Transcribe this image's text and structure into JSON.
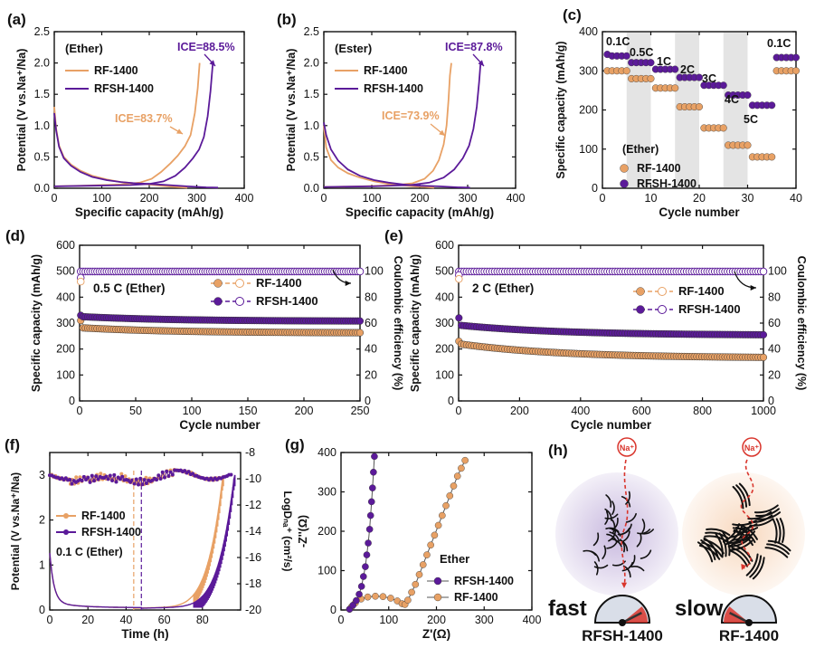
{
  "colors": {
    "rf": "#E8A165",
    "rfsh": "#5B1A99",
    "red": "#D9352C",
    "axis": "#111111",
    "band": "#E4E4E4"
  },
  "chart_data": [
    {
      "id": "a",
      "type": "line",
      "panel_label": "(a)",
      "xlabel": "Specific capacity (mAh/g)",
      "ylabel": "Potential (V vs.Na⁺/Na)",
      "xlim": [
        0,
        400
      ],
      "ylim": [
        0,
        2.5
      ],
      "xticks": [
        "0",
        "100",
        "200",
        "300",
        "400"
      ],
      "yticks": [
        "0.0",
        "0.5",
        "1.0",
        "1.5",
        "2.0",
        "2.5"
      ],
      "legend_title": "(Ether)",
      "annotations": [
        "ICE=83.7%",
        "ICE=88.5%"
      ],
      "series": [
        {
          "name": "RF-1400",
          "color": "rf",
          "discharge": [
            [
              0,
              1.3
            ],
            [
              4,
              0.95
            ],
            [
              10,
              0.68
            ],
            [
              20,
              0.5
            ],
            [
              35,
              0.38
            ],
            [
              55,
              0.28
            ],
            [
              80,
              0.2
            ],
            [
              110,
              0.14
            ],
            [
              140,
              0.1
            ],
            [
              170,
              0.08
            ],
            [
              200,
              0.06
            ],
            [
              225,
              0.04
            ],
            [
              255,
              0.02
            ],
            [
              280,
              0.01
            ]
          ],
          "charge": [
            [
              0,
              0.03
            ],
            [
              60,
              0.04
            ],
            [
              140,
              0.06
            ],
            [
              180,
              0.09
            ],
            [
              205,
              0.15
            ],
            [
              225,
              0.26
            ],
            [
              245,
              0.4
            ],
            [
              260,
              0.52
            ],
            [
              275,
              0.67
            ],
            [
              287,
              0.85
            ],
            [
              296,
              1.2
            ],
            [
              302,
              1.6
            ],
            [
              306,
              2.0
            ]
          ]
        },
        {
          "name": "RFSH-1400",
          "color": "rfsh",
          "discharge": [
            [
              0,
              1.2
            ],
            [
              4,
              0.92
            ],
            [
              10,
              0.66
            ],
            [
              20,
              0.48
            ],
            [
              35,
              0.36
            ],
            [
              55,
              0.26
            ],
            [
              80,
              0.18
            ],
            [
              110,
              0.13
            ],
            [
              140,
              0.1
            ],
            [
              170,
              0.08
            ],
            [
              200,
              0.07
            ],
            [
              240,
              0.05
            ],
            [
              280,
              0.03
            ],
            [
              320,
              0.015
            ],
            [
              345,
              0.01
            ]
          ],
          "charge": [
            [
              0,
              0.03
            ],
            [
              80,
              0.04
            ],
            [
              160,
              0.05
            ],
            [
              200,
              0.07
            ],
            [
              230,
              0.11
            ],
            [
              255,
              0.2
            ],
            [
              275,
              0.33
            ],
            [
              292,
              0.48
            ],
            [
              305,
              0.62
            ],
            [
              315,
              0.82
            ],
            [
              323,
              1.15
            ],
            [
              329,
              1.55
            ],
            [
              334,
              2.0
            ]
          ]
        }
      ]
    },
    {
      "id": "b",
      "type": "line",
      "panel_label": "(b)",
      "xlabel": "Specific capacity (mAh/g)",
      "ylabel": "Potential (V vs.Na⁺/Na)",
      "xlim": [
        0,
        400
      ],
      "ylim": [
        0,
        2.5
      ],
      "xticks": [
        "0",
        "100",
        "200",
        "300",
        "400"
      ],
      "yticks": [
        "0.0",
        "0.5",
        "1.0",
        "1.5",
        "2.0",
        "2.5"
      ],
      "legend_title": "(Ester)",
      "annotations": [
        "ICE=73.9%",
        "ICE=87.8%"
      ],
      "series": [
        {
          "name": "RF-1400",
          "color": "rf",
          "discharge": [
            [
              0,
              1.0
            ],
            [
              5,
              0.65
            ],
            [
              15,
              0.45
            ],
            [
              30,
              0.33
            ],
            [
              50,
              0.24
            ],
            [
              75,
              0.17
            ],
            [
              105,
              0.11
            ],
            [
              135,
              0.07
            ],
            [
              160,
              0.05
            ],
            [
              185,
              0.03
            ],
            [
              210,
              0.02
            ],
            [
              230,
              0.01
            ]
          ],
          "charge": [
            [
              0,
              0.02
            ],
            [
              80,
              0.03
            ],
            [
              150,
              0.05
            ],
            [
              185,
              0.08
            ],
            [
              210,
              0.15
            ],
            [
              228,
              0.28
            ],
            [
              240,
              0.45
            ],
            [
              250,
              0.7
            ],
            [
              256,
              1.0
            ],
            [
              260,
              1.4
            ],
            [
              263,
              1.8
            ],
            [
              266,
              2.0
            ]
          ]
        },
        {
          "name": "RFSH-1400",
          "color": "rfsh",
          "discharge": [
            [
              0,
              1.05
            ],
            [
              5,
              0.85
            ],
            [
              15,
              0.62
            ],
            [
              30,
              0.44
            ],
            [
              50,
              0.3
            ],
            [
              75,
              0.2
            ],
            [
              105,
              0.13
            ],
            [
              135,
              0.09
            ],
            [
              165,
              0.06
            ],
            [
              200,
              0.04
            ],
            [
              240,
              0.03
            ],
            [
              280,
              0.015
            ],
            [
              305,
              0.01
            ]
          ],
          "charge": [
            [
              0,
              0.02
            ],
            [
              100,
              0.03
            ],
            [
              180,
              0.05
            ],
            [
              220,
              0.09
            ],
            [
              250,
              0.17
            ],
            [
              272,
              0.3
            ],
            [
              290,
              0.48
            ],
            [
              303,
              0.68
            ],
            [
              312,
              0.95
            ],
            [
              319,
              1.3
            ],
            [
              324,
              1.7
            ],
            [
              327,
              2.0
            ]
          ]
        }
      ]
    },
    {
      "id": "c",
      "type": "scatter",
      "panel_label": "(c)",
      "xlabel": "Cycle number",
      "ylabel": "Specific capacity (mAh/g)",
      "xlim": [
        0,
        40
      ],
      "ylim": [
        0,
        400
      ],
      "xticks": [
        "0",
        "10",
        "20",
        "30",
        "40"
      ],
      "yticks": [
        "0",
        "100",
        "200",
        "300",
        "400"
      ],
      "legend_title": "(Ether)",
      "rate_labels": [
        "0.1C",
        "0.5C",
        "1C",
        "2C",
        "3C",
        "4C",
        "5C",
        "0.1C"
      ],
      "series": [
        {
          "name": "RF-1400",
          "color": "rf",
          "rate_values": [
            300,
            280,
            256,
            208,
            154,
            110,
            80,
            300
          ]
        },
        {
          "name": "RFSH-1400",
          "color": "rfsh",
          "rate_values": [
            338,
            321,
            304,
            283,
            263,
            238,
            212,
            334
          ]
        }
      ]
    },
    {
      "id": "d",
      "type": "scatter",
      "panel_label": "(d)",
      "xlabel": "Cycle number",
      "ylabel": "Specific capacity (mAh/g)",
      "y2label": "Coulombic efficiency (%)",
      "xlim": [
        0,
        250
      ],
      "ylim": [
        0,
        600
      ],
      "y2lim": [
        0,
        120
      ],
      "xticks": [
        "0",
        "50",
        "100",
        "150",
        "200",
        "250"
      ],
      "yticks": [
        "0",
        "100",
        "200",
        "300",
        "400",
        "500",
        "600"
      ],
      "y2ticks": [
        "0",
        "20",
        "40",
        "60",
        "80",
        "100"
      ],
      "condition": "0.5 C (Ether)",
      "series": [
        {
          "name": "RF-1400",
          "color": "rf",
          "start": 282,
          "end": 263,
          "first": 310
        },
        {
          "name": "RFSH-1400",
          "color": "rfsh",
          "start": 325,
          "end": 308,
          "first": 330
        }
      ],
      "efficiency": {
        "value": 99.8,
        "first": [
          95,
          92
        ]
      }
    },
    {
      "id": "e",
      "type": "scatter",
      "panel_label": "(e)",
      "xlabel": "Cycle number",
      "ylabel": "Specific capacity (mAh/g)",
      "y2label": "Coulombic efficiency (%)",
      "xlim": [
        0,
        1000
      ],
      "ylim": [
        0,
        600
      ],
      "y2lim": [
        0,
        120
      ],
      "xticks": [
        "0",
        "200",
        "400",
        "600",
        "800",
        "1000"
      ],
      "yticks": [
        "0",
        "100",
        "200",
        "300",
        "400",
        "500",
        "600"
      ],
      "y2ticks": [
        "0",
        "20",
        "40",
        "60",
        "80",
        "100"
      ],
      "condition": "2 C (Ether)",
      "series": [
        {
          "name": "RF-1400",
          "color": "rf",
          "start": 220,
          "end": 168,
          "first": 230
        },
        {
          "name": "RFSH-1400",
          "color": "rfsh",
          "start": 292,
          "end": 255,
          "first": 320
        }
      ],
      "efficiency": {
        "value": 99.8,
        "first": [
          97,
          94
        ]
      }
    },
    {
      "id": "f",
      "type": "line",
      "panel_label": "(f)",
      "xlabel": "Time (h)",
      "ylabel": "Potential (V vs.Na⁺/Na)",
      "y2label": "LogDₙₐ⁺ (cm²/s)",
      "xlim": [
        0,
        100
      ],
      "ylim": [
        0,
        3.5
      ],
      "y2lim": [
        -20,
        -8
      ],
      "xticks": [
        "0",
        "20",
        "40",
        "60",
        "80"
      ],
      "yticks": [
        "0",
        "1",
        "2",
        "3"
      ],
      "y2ticks": [
        "-20",
        "-18",
        "-16",
        "-14",
        "-12",
        "-10",
        "-8"
      ],
      "condition": "0.1 C (Ether)",
      "dashed_x": [
        44,
        48
      ],
      "series": [
        {
          "name": "RF-1400",
          "color": "rf"
        },
        {
          "name": "RFSH-1400",
          "color": "rfsh"
        }
      ]
    },
    {
      "id": "g",
      "type": "scatter",
      "panel_label": "(g)",
      "xlabel": "Z'(Ω)",
      "ylabel": "-Z''(Ω)",
      "xlim": [
        0,
        400
      ],
      "ylim": [
        0,
        400
      ],
      "xticks": [
        "0",
        "100",
        "200",
        "300",
        "400"
      ],
      "yticks": [
        "0",
        "100",
        "200",
        "300",
        "400"
      ],
      "legend_title": "Ether",
      "series": [
        {
          "name": "RFSH-1400",
          "color": "rfsh",
          "points": [
            [
              18,
              2
            ],
            [
              25,
              12
            ],
            [
              32,
              24
            ],
            [
              38,
              40
            ],
            [
              43,
              60
            ],
            [
              47,
              85
            ],
            [
              51,
              110
            ],
            [
              54,
              140
            ],
            [
              57,
              170
            ],
            [
              60,
              205
            ],
            [
              62,
              240
            ],
            [
              64,
              275
            ],
            [
              66,
              310
            ],
            [
              68,
              350
            ],
            [
              70,
              390
            ]
          ]
        },
        {
          "name": "RF-1400",
          "color": "rf",
          "points": [
            [
              18,
              2
            ],
            [
              22,
              8
            ],
            [
              30,
              18
            ],
            [
              42,
              28
            ],
            [
              56,
              33
            ],
            [
              72,
              35
            ],
            [
              88,
              34
            ],
            [
              104,
              30
            ],
            [
              118,
              23
            ],
            [
              128,
              16
            ],
            [
              134,
              14
            ],
            [
              140,
              25
            ],
            [
              148,
              45
            ],
            [
              156,
              65
            ],
            [
              164,
              90
            ],
            [
              172,
              115
            ],
            [
              180,
              140
            ],
            [
              188,
              165
            ],
            [
              196,
              190
            ],
            [
              204,
              215
            ],
            [
              212,
              240
            ],
            [
              220,
              265
            ],
            [
              228,
              290
            ],
            [
              236,
              315
            ],
            [
              244,
              340
            ],
            [
              252,
              360
            ],
            [
              260,
              380
            ]
          ]
        }
      ]
    }
  ],
  "schematic": {
    "panel_label": "(h)",
    "ion_label": "Na⁺",
    "left": {
      "speed": "fast",
      "name": "RFSH-1400",
      "gauge_fraction": 0.85
    },
    "right": {
      "speed": "slow",
      "name": "RF-1400",
      "gauge_fraction": 0.15
    }
  }
}
